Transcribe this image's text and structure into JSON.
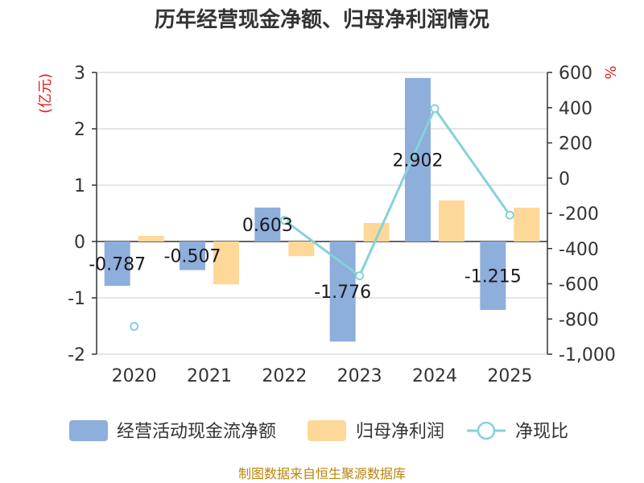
{
  "chart_data": {
    "type": "bar",
    "title": "历年经营现金净额、归母净利润情况",
    "categories": [
      "2020",
      "2021",
      "2022",
      "2023",
      "2024",
      "2025"
    ],
    "left_axis": {
      "unit": "(亿元)",
      "ylim": [
        -2,
        3
      ],
      "ticks": [
        3,
        2,
        1,
        0,
        -1,
        -2
      ],
      "tick_labels": [
        "3",
        "2",
        "1",
        "0",
        "-1",
        "-2"
      ]
    },
    "right_axis": {
      "unit": "%",
      "ylim": [
        -1000,
        600
      ],
      "ticks": [
        600,
        400,
        200,
        0,
        -200,
        -400,
        -600,
        -800,
        -1000
      ],
      "tick_labels": [
        "600",
        "400",
        "200",
        "0",
        "-200",
        "-400",
        "-600",
        "-800",
        "-1,000"
      ]
    },
    "series": [
      {
        "name": "经营活动现金流净额",
        "type": "bar",
        "axis": "left",
        "color": "#8eaedc",
        "values": [
          -0.787,
          -0.507,
          0.603,
          -1.776,
          2.902,
          -1.215
        ],
        "labels": [
          "-0.787",
          "-0.507",
          "0.603",
          "-1.776",
          "2.902",
          "-1.215"
        ]
      },
      {
        "name": "归母净利润",
        "type": "bar",
        "axis": "left",
        "color": "#fdd898",
        "values": [
          0.1,
          -0.76,
          -0.26,
          0.33,
          0.73,
          0.6
        ]
      },
      {
        "name": "净现比",
        "type": "line",
        "axis": "right",
        "color": "#86d2d8",
        "values": [
          -842,
          null,
          -240,
          -555,
          395,
          -210
        ]
      }
    ],
    "source": "制图数据来自恒生聚源数据库"
  }
}
